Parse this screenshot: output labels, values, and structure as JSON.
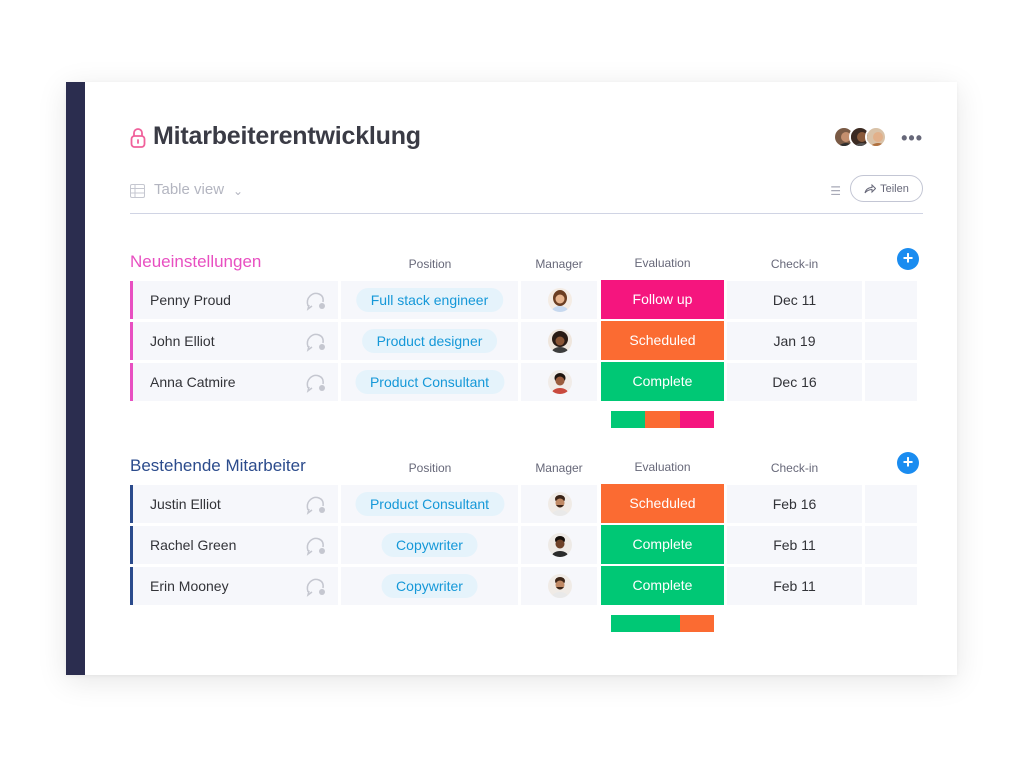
{
  "board": {
    "title": "Mitarbeiterentwicklung",
    "view_label": "Table view",
    "share_label": "Teilen"
  },
  "icons": {
    "lock": "lock-icon",
    "more": "more-icon",
    "table": "table-icon",
    "chevron": "chevron-down-icon",
    "filter": "filter-icon",
    "share": "share-arrow-icon",
    "comment": "comment-bubble-icon",
    "add": "plus-icon"
  },
  "columns": {
    "position": "Position",
    "manager": "Manager",
    "evaluation": "Evaluation",
    "checkin": "Check-in"
  },
  "colors": {
    "follow_up": "#f5157e",
    "scheduled": "#fb6b32",
    "complete": "#00c875",
    "group1": "#e84fc1",
    "group2": "#2b4b8c",
    "accent": "#1a8cf0"
  },
  "groups": [
    {
      "title": "Neueinstellungen",
      "color": "#e84fc1",
      "rows": [
        {
          "name": "Penny Proud",
          "position": "Full stack engineer",
          "status": "Follow up",
          "status_color": "#f5157e",
          "checkin": "Dec 11"
        },
        {
          "name": "John Elliot",
          "position": "Product designer",
          "status": "Scheduled",
          "status_color": "#fb6b32",
          "checkin": "Jan 19"
        },
        {
          "name": "Anna Catmire",
          "position": "Product Consultant",
          "status": "Complete",
          "status_color": "#00c875",
          "checkin": "Dec 16"
        }
      ],
      "summary": [
        {
          "label": "Complete",
          "fraction": 0.333,
          "color": "#00c875"
        },
        {
          "label": "Scheduled",
          "fraction": 0.333,
          "color": "#fb6b32"
        },
        {
          "label": "Follow up",
          "fraction": 0.334,
          "color": "#f5157e"
        }
      ]
    },
    {
      "title": "Bestehende Mitarbeiter",
      "color": "#2b4b8c",
      "rows": [
        {
          "name": "Justin Elliot",
          "position": "Product Consultant",
          "status": "Scheduled",
          "status_color": "#fb6b32",
          "checkin": "Feb 16"
        },
        {
          "name": "Rachel Green",
          "position": "Copywriter",
          "status": "Complete",
          "status_color": "#00c875",
          "checkin": "Feb 11"
        },
        {
          "name": "Erin Mooney",
          "position": "Copywriter",
          "status": "Complete",
          "status_color": "#00c875",
          "checkin": "Feb 11"
        }
      ],
      "summary": [
        {
          "label": "Complete",
          "fraction": 0.667,
          "color": "#00c875"
        },
        {
          "label": "Scheduled",
          "fraction": 0.333,
          "color": "#fb6b32"
        }
      ]
    }
  ]
}
